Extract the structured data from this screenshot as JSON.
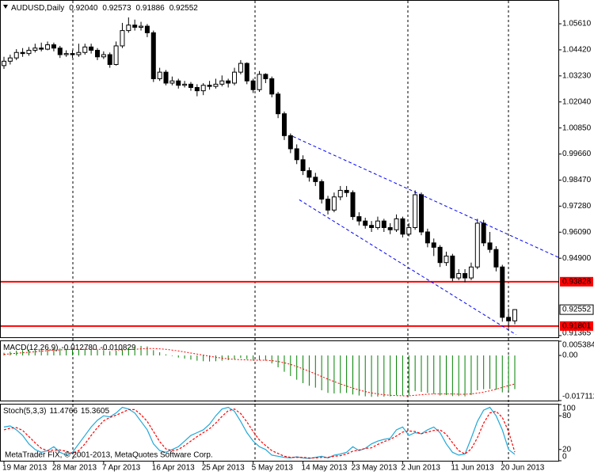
{
  "chart_data": [
    {
      "type": "candlestick",
      "symbol": "AUDUSD,Daily",
      "header_values": [
        "0.92040",
        "0.92573",
        "0.91886",
        "0.92552"
      ],
      "categories": [
        "19 Mar 2013",
        null,
        null,
        null,
        null,
        null,
        null,
        null,
        "28 Mar 2013",
        null,
        null,
        null,
        null,
        null,
        null,
        null,
        "7 Apr 2013",
        null,
        null,
        null,
        null,
        null,
        null,
        null,
        "16 Apr 2013",
        null,
        null,
        null,
        null,
        null,
        null,
        null,
        "25 Apr 2013",
        null,
        null,
        null,
        null,
        null,
        null,
        null,
        "5 May 2013",
        null,
        null,
        null,
        null,
        null,
        null,
        null,
        "14 May 2013",
        null,
        null,
        null,
        null,
        null,
        null,
        null,
        "23 May 2013",
        null,
        null,
        null,
        null,
        null,
        null,
        null,
        "2 Jun 2013",
        null,
        null,
        null,
        null,
        null,
        null,
        null,
        "11 Jun 2013",
        null,
        null,
        null,
        null,
        null,
        null,
        null,
        "20 Jun 2013",
        null,
        null
      ],
      "open": [
        1.037,
        1.039,
        1.0405,
        1.043,
        1.0425,
        1.044,
        1.045,
        1.0445,
        1.0465,
        1.045,
        1.042,
        1.0425,
        1.042,
        1.043,
        1.0455,
        1.044,
        1.041,
        1.042,
        1.0375,
        1.046,
        1.053,
        1.0555,
        1.0545,
        1.055,
        1.052,
        1.031,
        1.034,
        1.029,
        1.03,
        1.028,
        1.0285,
        1.027,
        1.0255,
        1.028,
        1.0275,
        1.0285,
        1.03,
        1.029,
        1.034,
        1.038,
        1.03,
        1.026,
        1.033,
        1.031,
        1.024,
        1.015,
        1.005,
        0.999,
        0.994,
        0.989,
        0.986,
        0.984,
        0.976,
        0.971,
        0.977,
        0.98,
        0.979,
        0.968,
        0.966,
        0.964,
        0.963,
        0.966,
        0.963,
        0.962,
        0.967,
        0.96,
        0.963,
        0.978,
        0.961,
        0.956,
        0.954,
        0.947,
        0.95,
        0.94,
        0.942,
        0.94,
        0.945,
        0.965,
        0.956,
        0.953,
        0.945,
        0.922,
        0.9204
      ],
      "high": [
        1.041,
        1.042,
        1.0445,
        1.045,
        1.0455,
        1.047,
        1.0475,
        1.048,
        1.0475,
        1.046,
        1.044,
        1.044,
        1.047,
        1.047,
        1.047,
        1.045,
        1.0435,
        1.043,
        1.048,
        1.0565,
        1.059,
        1.058,
        1.057,
        1.056,
        1.053,
        1.036,
        1.035,
        1.032,
        1.031,
        1.03,
        1.0295,
        1.0285,
        1.029,
        1.03,
        1.031,
        1.0325,
        1.031,
        1.036,
        1.0395,
        1.0385,
        1.031,
        1.0345,
        1.0335,
        1.032,
        1.025,
        1.016,
        1.006,
        1.001,
        0.996,
        0.9905,
        0.988,
        0.985,
        0.9775,
        0.979,
        0.982,
        0.982,
        0.98,
        0.97,
        0.9675,
        0.966,
        0.968,
        0.967,
        0.965,
        0.969,
        0.968,
        0.965,
        0.98,
        0.979,
        0.9625,
        0.958,
        0.955,
        0.952,
        0.951,
        0.944,
        0.944,
        0.947,
        0.967,
        0.9665,
        0.961,
        0.9545,
        0.946,
        0.926,
        0.92573
      ],
      "low": [
        1.0355,
        1.0375,
        1.0395,
        1.041,
        1.0415,
        1.043,
        1.0435,
        1.044,
        1.0435,
        1.0405,
        1.041,
        1.0405,
        1.041,
        1.042,
        1.0425,
        1.0395,
        1.04,
        1.036,
        1.037,
        1.045,
        1.052,
        1.053,
        1.053,
        1.05,
        1.0295,
        1.03,
        1.028,
        1.028,
        1.0265,
        1.027,
        1.0255,
        1.023,
        1.0235,
        1.026,
        1.0265,
        1.0275,
        1.027,
        1.028,
        1.033,
        1.0285,
        1.0245,
        1.025,
        1.029,
        1.0225,
        1.013,
        1.003,
        0.997,
        0.992,
        0.987,
        0.984,
        0.982,
        0.974,
        0.969,
        0.97,
        0.9755,
        0.977,
        0.9665,
        0.964,
        0.9625,
        0.961,
        0.962,
        0.961,
        0.96,
        0.961,
        0.9585,
        0.959,
        0.962,
        0.9595,
        0.954,
        0.95,
        0.945,
        0.9455,
        0.9385,
        0.939,
        0.938,
        0.939,
        0.944,
        0.9545,
        0.9515,
        0.943,
        0.92,
        0.917,
        0.91886
      ],
      "close": [
        1.039,
        1.0405,
        1.043,
        1.0425,
        1.044,
        1.045,
        1.0445,
        1.0465,
        1.045,
        1.042,
        1.0425,
        1.042,
        1.043,
        1.0455,
        1.044,
        1.041,
        1.042,
        1.0375,
        1.046,
        1.053,
        1.0555,
        1.0545,
        1.055,
        1.052,
        1.031,
        1.034,
        1.029,
        1.03,
        1.028,
        1.0285,
        1.027,
        1.0255,
        1.028,
        1.0275,
        1.0285,
        1.03,
        1.029,
        1.034,
        1.038,
        1.03,
        1.026,
        1.033,
        1.031,
        1.024,
        1.015,
        1.005,
        0.999,
        0.994,
        0.989,
        0.986,
        0.984,
        0.976,
        0.971,
        0.977,
        0.98,
        0.979,
        0.968,
        0.966,
        0.964,
        0.963,
        0.966,
        0.963,
        0.962,
        0.967,
        0.96,
        0.963,
        0.978,
        0.961,
        0.956,
        0.954,
        0.947,
        0.95,
        0.94,
        0.942,
        0.94,
        0.945,
        0.965,
        0.956,
        0.953,
        0.945,
        0.922,
        0.9204,
        0.92552
      ],
      "color_up": "#ffffff",
      "color_down": "#000000",
      "ylim": [
        0.9129,
        1.0666
      ],
      "yticks": [
        {
          "value": 1.0561,
          "label": "1.05610"
        },
        {
          "value": 1.0442,
          "label": "1.04420"
        },
        {
          "value": 1.0323,
          "label": "1.03230"
        },
        {
          "value": 1.0204,
          "label": "1.02040"
        },
        {
          "value": 1.0085,
          "label": "1.00850"
        },
        {
          "value": 0.9966,
          "label": "0.99660"
        },
        {
          "value": 0.9847,
          "label": "0.98470"
        },
        {
          "value": 0.9728,
          "label": "0.97280"
        },
        {
          "value": 0.9609,
          "label": "0.96090"
        },
        {
          "value": 0.949,
          "label": "0.94900"
        },
        0.91365
      ],
      "hlines": [
        {
          "value": 0.93828,
          "label": "0.93828",
          "color": "#ff0000"
        },
        {
          "value": 0.91801,
          "label": "0.91801",
          "color": "#ff0000"
        }
      ],
      "last_price": {
        "value": 0.92552,
        "label": "0.92552"
      },
      "channel_color": "#0000ff",
      "channel": [
        {
          "x": [
            46.4,
            89
          ],
          "y": [
            1.0046,
            0.9494
          ]
        },
        {
          "x": [
            47.4,
            82.2
          ],
          "y": [
            0.9757,
            0.9141
          ]
        }
      ]
    },
    {
      "type": "macd",
      "title": "MACD(12,26,9)",
      "header_values": [
        "-0.012780",
        "-0.010829"
      ],
      "histogram": {
        "color": "#008000",
        "values": [
          0.001,
          0.0014,
          0.0018,
          0.002,
          0.0022,
          0.0024,
          0.0025,
          0.0026,
          0.0027,
          0.0026,
          0.0024,
          0.0023,
          0.0022,
          0.0023,
          0.0024,
          0.0022,
          0.002,
          0.0016,
          0.0018,
          0.0024,
          0.003,
          0.0034,
          0.0036,
          0.0034,
          0.002,
          0.0012,
          0.0004,
          -0.0002,
          -0.0008,
          -0.0012,
          -0.0016,
          -0.002,
          -0.0022,
          -0.0023,
          -0.0022,
          -0.002,
          -0.0018,
          -0.0014,
          -0.001,
          -0.0014,
          -0.002,
          -0.0018,
          -0.002,
          -0.003,
          -0.0045,
          -0.0062,
          -0.0078,
          -0.0092,
          -0.0105,
          -0.0115,
          -0.0122,
          -0.0132,
          -0.0142,
          -0.0144,
          -0.0143,
          -0.0142,
          -0.0148,
          -0.0152,
          -0.0155,
          -0.0157,
          -0.0156,
          -0.0156,
          -0.0155,
          -0.015,
          -0.0152,
          -0.015,
          -0.0135,
          -0.0138,
          -0.0142,
          -0.0146,
          -0.0152,
          -0.015,
          -0.0154,
          -0.0154,
          -0.0155,
          -0.015,
          -0.0132,
          -0.0128,
          -0.0127,
          -0.013,
          -0.014,
          -0.0133,
          -0.01278
        ]
      },
      "signal": {
        "color": "#ff0000",
        "values": [
          0.0004,
          0.0006,
          0.0008,
          0.001,
          0.0012,
          0.0014,
          0.0016,
          0.0018,
          0.002,
          0.0021,
          0.0022,
          0.0023,
          0.0023,
          0.0023,
          0.0023,
          0.0023,
          0.0023,
          0.0022,
          0.0021,
          0.0021,
          0.0022,
          0.0023,
          0.0025,
          0.0026,
          0.0026,
          0.0025,
          0.0023,
          0.002,
          0.0017,
          0.0013,
          0.0009,
          0.0005,
          0.0001,
          -0.0003,
          -0.0007,
          -0.001,
          -0.0013,
          -0.0015,
          -0.0016,
          -0.0017,
          -0.0018,
          -0.0018,
          -0.0018,
          -0.002,
          -0.0023,
          -0.0028,
          -0.0034,
          -0.0042,
          -0.0051,
          -0.006,
          -0.007,
          -0.008,
          -0.009,
          -0.0099,
          -0.0108,
          -0.0116,
          -0.0124,
          -0.0131,
          -0.0137,
          -0.0142,
          -0.0146,
          -0.0149,
          -0.0151,
          -0.0152,
          -0.0153,
          -0.0153,
          -0.0151,
          -0.0149,
          -0.0147,
          -0.0146,
          -0.0146,
          -0.0146,
          -0.0146,
          -0.0147,
          -0.0147,
          -0.0146,
          -0.0143,
          -0.0139,
          -0.0134,
          -0.0128,
          -0.0121,
          -0.0114,
          -0.010829
        ]
      },
      "ylim": [
        -0.017112,
        0.005384
      ],
      "yticks": [
        0.005384,
        {
          "value": 0,
          "label": "0.00"
        },
        -0.017112
      ]
    },
    {
      "type": "line",
      "title": "Stoch(5,3,3)",
      "series": [
        {
          "color": "#20a8d8",
          "values": [
            60,
            62,
            55,
            45,
            30,
            20,
            15,
            18,
            25,
            15,
            10,
            15,
            30,
            45,
            60,
            72,
            80,
            78,
            85,
            95,
            92,
            85,
            70,
            55,
            30,
            18,
            15,
            20,
            25,
            35,
            45,
            50,
            55,
            65,
            80,
            92,
            95,
            88,
            70,
            50,
            35,
            25,
            20,
            10,
            8,
            6,
            5,
            7,
            5,
            4,
            6,
            8,
            5,
            10,
            12,
            15,
            25,
            18,
            22,
            30,
            35,
            38,
            40,
            55,
            60,
            45,
            50,
            48,
            55,
            60,
            50,
            30,
            15,
            10,
            12,
            40,
            70,
            90,
            95,
            80,
            55,
            20,
            11.4766
          ]
        },
        {
          "color": "#ff0000",
          "dashed": true,
          "values": [
            55,
            58,
            59,
            54,
            43,
            32,
            22,
            18,
            19,
            19,
            17,
            13,
            18,
            30,
            45,
            59,
            71,
            77,
            81,
            86,
            91,
            91,
            82,
            70,
            52,
            34,
            21,
            18,
            20,
            27,
            35,
            43,
            50,
            57,
            67,
            79,
            89,
            92,
            84,
            69,
            52,
            37,
            27,
            18,
            13,
            8,
            6,
            6,
            6,
            5,
            5,
            6,
            6,
            8,
            9,
            12,
            17,
            19,
            22,
            23,
            29,
            34,
            38,
            44,
            51,
            53,
            52,
            48,
            51,
            54,
            55,
            47,
            32,
            18,
            12,
            21,
            41,
            67,
            85,
            88,
            77,
            52,
            15.3605
          ]
        }
      ],
      "ylim": [
        0,
        100
      ],
      "yticks": [
        0,
        20,
        80,
        100
      ]
    }
  ],
  "copyright": "MetaTrader FIX, © 2001-2013, MetaQuotes Software Corp."
}
